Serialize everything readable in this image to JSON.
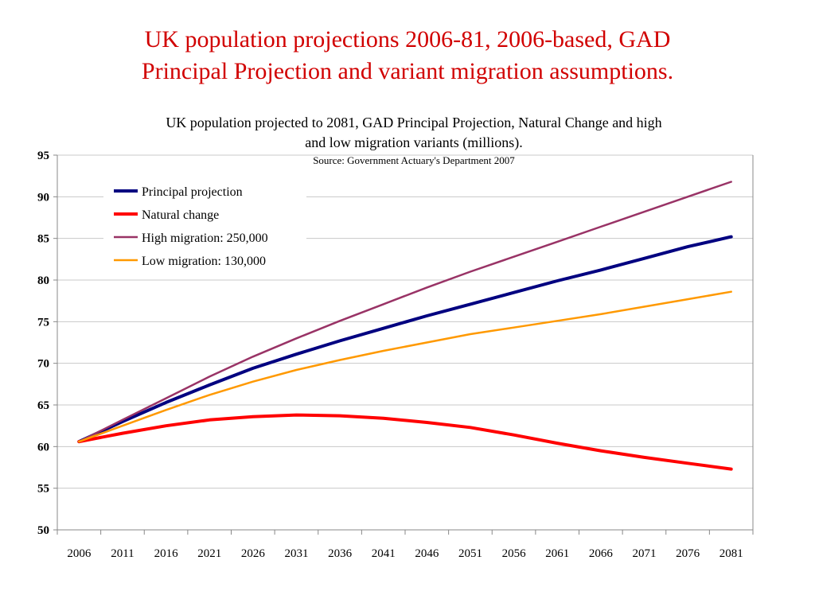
{
  "slide": {
    "title_line1": "UK population projections 2006-81, 2006-based, GAD",
    "title_line2": "Principal Projection and variant migration assumptions.",
    "title_color": "#d10000"
  },
  "chart_data": {
    "type": "line",
    "title_line1": "UK population projected to 2081, GAD Principal Projection, Natural Change and high",
    "title_line2": "and low migration variants (millions).",
    "subtitle": "Source: Government Actuary's Department 2007",
    "xlabel": "",
    "ylabel": "",
    "ylim": [
      50,
      95
    ],
    "yticks": [
      50,
      55,
      60,
      65,
      70,
      75,
      80,
      85,
      90,
      95
    ],
    "categories": [
      "2006",
      "2011",
      "2016",
      "2021",
      "2026",
      "2031",
      "2036",
      "2041",
      "2046",
      "2051",
      "2056",
      "2061",
      "2066",
      "2071",
      "2076",
      "2081"
    ],
    "grid": true,
    "legend_position": "top-left",
    "series": [
      {
        "name": "Principal projection",
        "color": "#000080",
        "width": 4,
        "values": [
          60.6,
          63.0,
          65.3,
          67.4,
          69.4,
          71.1,
          72.7,
          74.2,
          75.7,
          77.1,
          78.5,
          79.9,
          81.2,
          82.6,
          84.0,
          85.2
        ]
      },
      {
        "name": "Natural  change",
        "color": "#ff0000",
        "width": 4,
        "values": [
          60.6,
          61.6,
          62.5,
          63.2,
          63.6,
          63.8,
          63.7,
          63.4,
          62.9,
          62.3,
          61.4,
          60.4,
          59.5,
          58.7,
          58.0,
          57.3
        ]
      },
      {
        "name": "High migration: 250,000",
        "color": "#993366",
        "width": 2.5,
        "values": [
          60.6,
          63.2,
          65.8,
          68.4,
          70.8,
          73.0,
          75.1,
          77.1,
          79.1,
          81.0,
          82.8,
          84.6,
          86.4,
          88.2,
          90.0,
          91.8
        ]
      },
      {
        "name": "Low migration: 130,000",
        "color": "#ff9900",
        "width": 2.5,
        "values": [
          60.6,
          62.5,
          64.4,
          66.2,
          67.8,
          69.2,
          70.4,
          71.5,
          72.5,
          73.5,
          74.3,
          75.1,
          75.9,
          76.8,
          77.7,
          78.6
        ]
      }
    ]
  }
}
